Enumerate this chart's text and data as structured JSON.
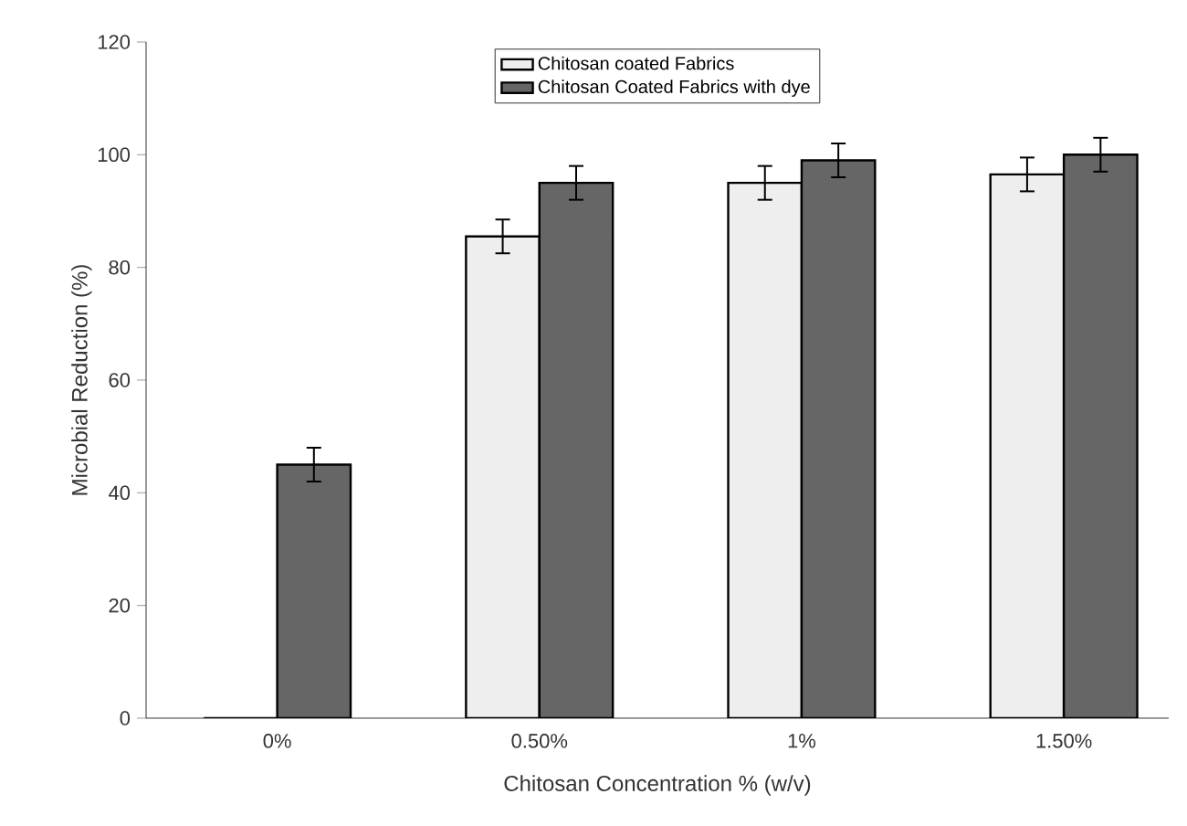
{
  "chart_data": {
    "type": "bar",
    "xlabel": "Chitosan Concentration %  (w/v)",
    "ylabel": "Microbial Reduction (%)",
    "categories": [
      "0%",
      "0.50%",
      "1%",
      "1.50%"
    ],
    "series": [
      {
        "name": "Chitosan coated Fabrics",
        "color": "#eeeeee",
        "values": [
          0,
          85.5,
          95,
          96.5
        ],
        "errors": [
          null,
          3,
          3,
          3
        ]
      },
      {
        "name": "Chitosan Coated Fabrics with dye",
        "color": "#666666",
        "values": [
          45,
          95,
          99,
          100
        ],
        "errors": [
          3,
          3,
          3,
          3
        ]
      }
    ],
    "ylim": [
      0,
      120
    ],
    "yticks": [
      0,
      20,
      40,
      60,
      80,
      100,
      120
    ],
    "legend": "top",
    "grid": false
  }
}
